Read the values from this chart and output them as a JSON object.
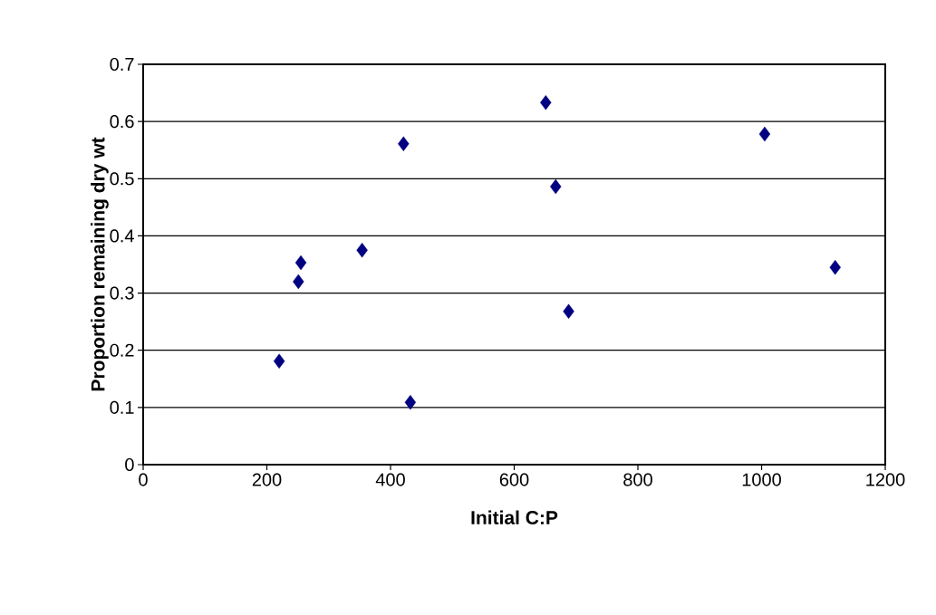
{
  "chart_data": {
    "type": "scatter",
    "xlabel": "Initial C:P",
    "ylabel": "Proportion remaining dry wt",
    "x": [
      220,
      251,
      255,
      354,
      421,
      432,
      651,
      667,
      688,
      1005,
      1119
    ],
    "series": [
      {
        "color": "#000080",
        "values": [
          0.181,
          0.32,
          0.353,
          0.375,
          0.561,
          0.109,
          0.633,
          0.486,
          0.268,
          0.578,
          0.345
        ]
      }
    ],
    "xlim": [
      0,
      1200
    ],
    "ylim": [
      0,
      0.7
    ],
    "xticks": [
      0,
      200,
      400,
      600,
      800,
      1000,
      1200
    ],
    "yticks": [
      0,
      0.1,
      0.2,
      0.3,
      0.4,
      0.5,
      0.6,
      0.7
    ],
    "grid": "y",
    "marker": "diamond"
  }
}
